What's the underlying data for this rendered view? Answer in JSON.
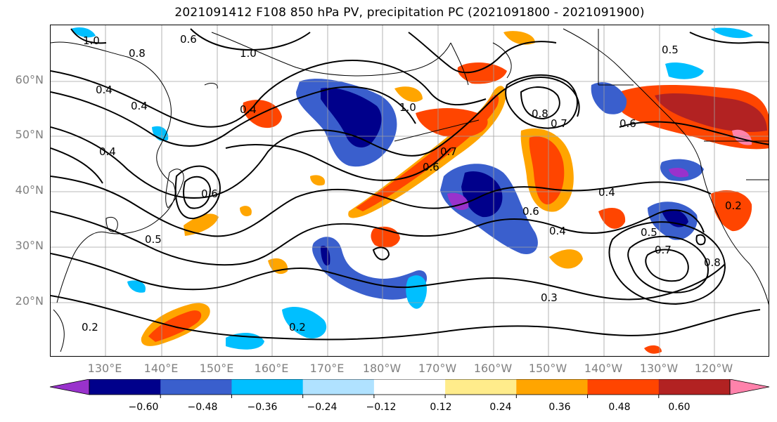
{
  "title": "2021091412 F108 850 hPa PV, precipitation PC (2021091800 - 2021091900)",
  "lat_labels": [
    "60°N",
    "50°N",
    "40°N",
    "30°N",
    "20°N"
  ],
  "lon_labels": [
    "130°E",
    "140°E",
    "150°E",
    "160°E",
    "170°E",
    "180°W",
    "170°W",
    "160°W",
    "150°W",
    "140°W",
    "130°W",
    "120°W"
  ],
  "colorbar": {
    "colors": [
      "#9932cc",
      "#00008b",
      "#3a5fcd",
      "#00bfff",
      "#b0e2ff",
      "#ffffff",
      "#ffec8b",
      "#ffa500",
      "#ff4500",
      "#b22222",
      "#ff82ab"
    ],
    "tick_labels": [
      "−0.60",
      "−0.48",
      "−0.36",
      "−0.24",
      "−0.12",
      "0.12",
      "0.24",
      "0.36",
      "0.48",
      "0.60"
    ]
  },
  "contour_labels": [
    "1.0",
    "0.8",
    "0.6",
    "0.4",
    "0.5",
    "0.4",
    "1.0",
    "0.8",
    "0.7",
    "0.6",
    "0.7",
    "0.4",
    "0.6",
    "0.4",
    "0.3",
    "0.2",
    "0.2",
    "0.5",
    "0.4",
    "0.7",
    "0.8",
    "0.6",
    "0.2",
    "1.0",
    "0.6",
    "0.5",
    "0.4"
  ]
}
